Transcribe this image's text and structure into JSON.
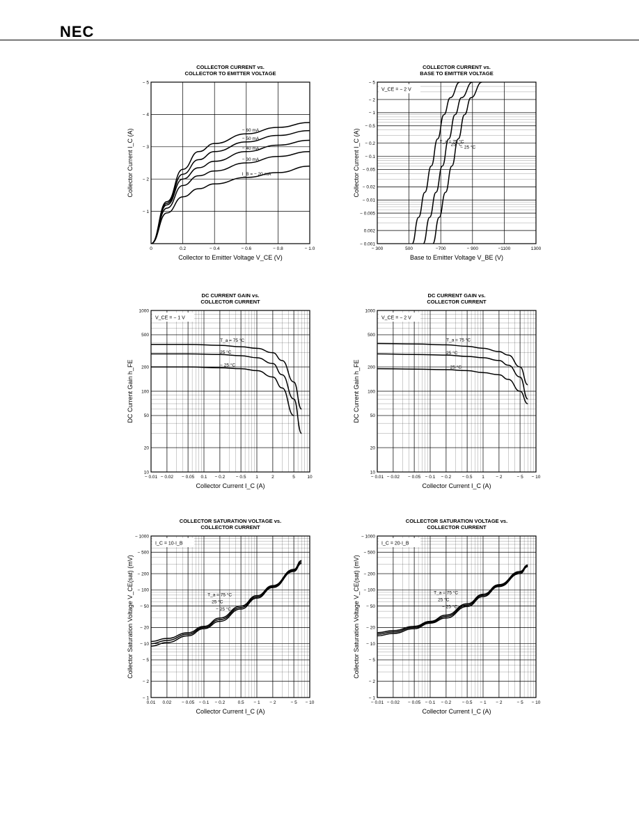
{
  "header": {
    "brand": "NEC"
  },
  "chart_data": [
    {
      "id": "c1",
      "type": "line",
      "title": "COLLECTOR CURRENT vs.\nCOLLECTOR TO EMITTER VOLTAGE",
      "xlabel": "Collector to Emitter Voltage  V_CE (V)",
      "ylabel": "Collector Current  I_C (A)",
      "xscale": "linear",
      "yscale": "linear",
      "xlim": [
        0,
        -1.0
      ],
      "ylim": [
        0,
        -5
      ],
      "xticks": [
        {
          "v": 0,
          "l": "0"
        },
        {
          "v": -0.2,
          "l": "0.2"
        },
        {
          "v": -0.4,
          "l": "− 0.4"
        },
        {
          "v": -0.6,
          "l": "− 0.6"
        },
        {
          "v": -0.8,
          "l": "− 0.8"
        },
        {
          "v": -1.0,
          "l": "− 1.0"
        }
      ],
      "yticks": [
        {
          "v": 0,
          "l": ""
        },
        {
          "v": -1,
          "l": "− 1"
        },
        {
          "v": -2,
          "l": "− 2"
        },
        {
          "v": -3,
          "l": "− 3"
        },
        {
          "v": -4,
          "l": "− 4"
        },
        {
          "v": -5,
          "l": "− 5"
        }
      ],
      "series": [
        {
          "name": "− 60 mA",
          "x": [
            0,
            -0.1,
            -0.2,
            -0.3,
            -0.4,
            -0.6,
            -0.8,
            -1.0
          ],
          "y": [
            0,
            -1.3,
            -2.3,
            -2.85,
            -3.1,
            -3.4,
            -3.6,
            -3.75
          ]
        },
        {
          "name": "− 50 mA",
          "x": [
            0,
            -0.1,
            -0.2,
            -0.3,
            -0.4,
            -0.6,
            -0.8,
            -1.0
          ],
          "y": [
            0,
            -1.25,
            -2.15,
            -2.6,
            -2.85,
            -3.15,
            -3.35,
            -3.5
          ]
        },
        {
          "name": "− 40 mA",
          "x": [
            0,
            -0.1,
            -0.2,
            -0.3,
            -0.4,
            -0.6,
            -0.8,
            -1.0
          ],
          "y": [
            0,
            -1.2,
            -2.0,
            -2.35,
            -2.55,
            -2.85,
            -3.05,
            -3.2
          ]
        },
        {
          "name": "− 30 mA",
          "x": [
            0,
            -0.1,
            -0.2,
            -0.3,
            -0.4,
            -0.6,
            -0.8,
            -1.0
          ],
          "y": [
            0,
            -1.1,
            -1.8,
            -2.1,
            -2.25,
            -2.5,
            -2.7,
            -2.85
          ]
        },
        {
          "name": "I_B = − 20 mA",
          "x": [
            0,
            -0.1,
            -0.2,
            -0.3,
            -0.4,
            -0.6,
            -0.8,
            -1.0
          ],
          "y": [
            0,
            -0.95,
            -1.45,
            -1.7,
            -1.85,
            -2.05,
            -2.2,
            -2.4
          ]
        }
      ]
    },
    {
      "id": "c2",
      "type": "line",
      "title": "COLLECTOR CURRENT vs.\nBASE TO EMITTER VOLTAGE",
      "xlabel": "Base to Emitter Voltage  V_BE (V)",
      "ylabel": "Collector Current  I_C (A)",
      "xscale": "linear",
      "yscale": "log",
      "xlim": [
        -300,
        -1300
      ],
      "ylim": [
        -0.001,
        -5
      ],
      "annotation": "V_CE = − 2 V",
      "xticks": [
        {
          "v": -300,
          "l": "− 300"
        },
        {
          "v": -500,
          "l": "500"
        },
        {
          "v": -700,
          "l": "−700"
        },
        {
          "v": -900,
          "l": "− 900"
        },
        {
          "v": -1100,
          "l": "−1100"
        },
        {
          "v": -1300,
          "l": "1300"
        }
      ],
      "yticks": [
        {
          "v": -5,
          "l": "− 5"
        },
        {
          "v": -2,
          "l": "− 2"
        },
        {
          "v": -1,
          "l": "− 1"
        },
        {
          "v": -0.5,
          "l": "− 0.5"
        },
        {
          "v": -0.2,
          "l": "− 0.2"
        },
        {
          "v": -0.1,
          "l": "− 0.1"
        },
        {
          "v": -0.05,
          "l": "− 0.05"
        },
        {
          "v": -0.02,
          "l": "− 0.02"
        },
        {
          "v": -0.01,
          "l": "− 0.01"
        },
        {
          "v": -0.005,
          "l": "− 0.005"
        },
        {
          "v": -0.002,
          "l": "0.002"
        },
        {
          "v": -0.001,
          "l": "− 0.001"
        }
      ],
      "series": [
        {
          "name": "T_a = 75 °C",
          "x": [
            -520,
            -560,
            -600,
            -640,
            -680,
            -720,
            -760,
            -820
          ],
          "y": [
            -0.001,
            -0.004,
            -0.015,
            -0.06,
            -0.25,
            -0.9,
            -2.2,
            -5
          ]
        },
        {
          "name": "25 °C",
          "x": [
            -590,
            -630,
            -670,
            -710,
            -750,
            -790,
            -830,
            -900
          ],
          "y": [
            -0.001,
            -0.004,
            -0.015,
            -0.06,
            -0.25,
            -0.9,
            -2.2,
            -5
          ]
        },
        {
          "name": "− 25 °C",
          "x": [
            -650,
            -690,
            -730,
            -770,
            -810,
            -850,
            -890,
            -960
          ],
          "y": [
            -0.001,
            -0.004,
            -0.015,
            -0.06,
            -0.25,
            -0.9,
            -2.2,
            -5
          ]
        }
      ]
    },
    {
      "id": "c3",
      "type": "line",
      "title": "DC CURRENT GAIN vs.\nCOLLECTOR CURRENT",
      "xlabel": "Collector Current  I_C (A)",
      "ylabel": "DC Current Gain  h_FE",
      "xscale": "log",
      "yscale": "log",
      "xlim": [
        -0.01,
        -10
      ],
      "ylim": [
        10,
        1000
      ],
      "annotation": "V_CE = − 1 V",
      "xticks": [
        {
          "v": -0.01,
          "l": "− 0.01"
        },
        {
          "v": -0.02,
          "l": "− 0.02"
        },
        {
          "v": -0.05,
          "l": "− 0.05"
        },
        {
          "v": -0.1,
          "l": "0.1"
        },
        {
          "v": -0.2,
          "l": "− 0.2"
        },
        {
          "v": -0.5,
          "l": "− 0.5"
        },
        {
          "v": -1,
          "l": "1"
        },
        {
          "v": -2,
          "l": "2"
        },
        {
          "v": -5,
          "l": "5"
        },
        {
          "v": -10,
          "l": "10"
        }
      ],
      "yticks": [
        {
          "v": 1000,
          "l": "1000"
        },
        {
          "v": 500,
          "l": "500"
        },
        {
          "v": 200,
          "l": "200"
        },
        {
          "v": 100,
          "l": "100"
        },
        {
          "v": 50,
          "l": "50"
        },
        {
          "v": 20,
          "l": "20"
        },
        {
          "v": 10,
          "l": "10"
        }
      ],
      "series": [
        {
          "name": "T_a = 75 °C",
          "x": [
            -0.01,
            -0.05,
            -0.2,
            -0.5,
            -1,
            -2,
            -3,
            -5,
            -7
          ],
          "y": [
            380,
            380,
            370,
            355,
            340,
            300,
            240,
            130,
            60
          ]
        },
        {
          "name": "25 °C",
          "x": [
            -0.01,
            -0.05,
            -0.2,
            -0.5,
            -1,
            -2,
            -3,
            -5,
            -7
          ],
          "y": [
            290,
            290,
            285,
            275,
            260,
            220,
            160,
            80,
            30
          ]
        },
        {
          "name": "− 25 °C",
          "x": [
            -0.01,
            -0.05,
            -0.2,
            -0.5,
            -1,
            -2,
            -3,
            -5
          ],
          "y": [
            200,
            200,
            195,
            190,
            180,
            150,
            110,
            50
          ]
        }
      ]
    },
    {
      "id": "c4",
      "type": "line",
      "title": "DC CURRENT GAIN vs.\nCOLLECTOR CURRENT",
      "xlabel": "Collector Current  I_C (A)",
      "ylabel": "DC Current Gain  h_FE",
      "xscale": "log",
      "yscale": "log",
      "xlim": [
        -0.01,
        -10
      ],
      "ylim": [
        10,
        1000
      ],
      "annotation": "V_CE = − 2 V",
      "xticks": [
        {
          "v": -0.01,
          "l": "− 0.01"
        },
        {
          "v": -0.02,
          "l": "− 0.02"
        },
        {
          "v": -0.05,
          "l": "− 0.05"
        },
        {
          "v": -0.1,
          "l": "− 0.1"
        },
        {
          "v": -0.2,
          "l": "− 0.2"
        },
        {
          "v": -0.5,
          "l": "− 0.5"
        },
        {
          "v": -1,
          "l": "1"
        },
        {
          "v": -2,
          "l": "− 2"
        },
        {
          "v": -5,
          "l": "− 5"
        },
        {
          "v": -10,
          "l": "− 10"
        }
      ],
      "yticks": [
        {
          "v": 1000,
          "l": "1000"
        },
        {
          "v": 500,
          "l": "500"
        },
        {
          "v": 200,
          "l": "200"
        },
        {
          "v": 100,
          "l": "100"
        },
        {
          "v": 50,
          "l": "50"
        },
        {
          "v": 20,
          "l": "20"
        },
        {
          "v": 10,
          "l": "10"
        }
      ],
      "series": [
        {
          "name": "T_a = 75 °C",
          "x": [
            -0.01,
            -0.05,
            -0.2,
            -0.5,
            -1,
            -2,
            -3,
            -5,
            -7
          ],
          "y": [
            390,
            385,
            375,
            360,
            340,
            310,
            280,
            200,
            120
          ]
        },
        {
          "name": "25 °C",
          "x": [
            -0.01,
            -0.05,
            -0.2,
            -0.5,
            -1,
            -2,
            -3,
            -5,
            -7
          ],
          "y": [
            290,
            285,
            280,
            270,
            260,
            240,
            210,
            150,
            80
          ]
        },
        {
          "name": "− 25 °C",
          "x": [
            -0.01,
            -0.05,
            -0.2,
            -0.5,
            -1,
            -2,
            -3,
            -5,
            -7
          ],
          "y": [
            190,
            188,
            185,
            180,
            170,
            160,
            140,
            100,
            70
          ]
        }
      ]
    },
    {
      "id": "c5",
      "type": "line",
      "title": "COLLECTOR SATURATION VOLTAGE vs.\nCOLLECTOR CURRENT",
      "xlabel": "Collector Current  I_C (A)",
      "ylabel": "Collector Saturation Voltage  V_CE(sat) (mV)",
      "xscale": "log",
      "yscale": "log",
      "xlim": [
        -0.01,
        -10
      ],
      "ylim": [
        -1,
        -1000
      ],
      "annotation": "I_C = 10·I_B",
      "xticks": [
        {
          "v": -0.01,
          "l": "0.01"
        },
        {
          "v": -0.02,
          "l": "0.02"
        },
        {
          "v": -0.05,
          "l": "− 0.05"
        },
        {
          "v": -0.1,
          "l": "− 0.1"
        },
        {
          "v": -0.2,
          "l": "− 0.2"
        },
        {
          "v": -0.5,
          "l": "0.5"
        },
        {
          "v": -1,
          "l": "− 1"
        },
        {
          "v": -2,
          "l": "− 2"
        },
        {
          "v": -5,
          "l": "− 5"
        },
        {
          "v": -10,
          "l": "− 10"
        }
      ],
      "yticks": [
        {
          "v": -1000,
          "l": "− 1000"
        },
        {
          "v": -500,
          "l": "− 500"
        },
        {
          "v": -200,
          "l": "− 200"
        },
        {
          "v": -100,
          "l": "− 100"
        },
        {
          "v": -50,
          "l": "− 50"
        },
        {
          "v": -20,
          "l": "− 20"
        },
        {
          "v": -10,
          "l": "− 10"
        },
        {
          "v": -5,
          "l": "− 5"
        },
        {
          "v": -2,
          "l": "− 2"
        },
        {
          "v": -1,
          "l": "− 1"
        }
      ],
      "series": [
        {
          "name": "T_a = 75 °C",
          "x": [
            -0.01,
            -0.02,
            -0.05,
            -0.1,
            -0.2,
            -0.5,
            -1,
            -2,
            -5,
            -7
          ],
          "y": [
            -11,
            -12.5,
            -16,
            -21,
            -30,
            -50,
            -78,
            -120,
            -240,
            -350
          ]
        },
        {
          "name": "25 °C",
          "x": [
            -0.01,
            -0.02,
            -0.05,
            -0.1,
            -0.2,
            -0.5,
            -1,
            -2,
            -5,
            -7
          ],
          "y": [
            -10,
            -11.5,
            -15,
            -20,
            -28,
            -47,
            -74,
            -115,
            -230,
            -330
          ]
        },
        {
          "name": "− 25 °C",
          "x": [
            -0.01,
            -0.02,
            -0.05,
            -0.1,
            -0.2,
            -0.5,
            -1,
            -2,
            -5,
            -7
          ],
          "y": [
            -9,
            -10.5,
            -14,
            -19,
            -26,
            -44,
            -70,
            -110,
            -220,
            -310
          ]
        }
      ]
    },
    {
      "id": "c6",
      "type": "line",
      "title": "COLLECTOR SATURATION VOLTAGE vs.\nCOLLECTOR CURRENT",
      "xlabel": "Collector Current  I_C (A)",
      "ylabel": "Collector Saturation Voltage  V_CE(sat) (mV)",
      "xscale": "log",
      "yscale": "log",
      "xlim": [
        -0.01,
        -10
      ],
      "ylim": [
        -1,
        -1000
      ],
      "annotation": "I_C = 20·I_B",
      "xticks": [
        {
          "v": -0.01,
          "l": "− 0.01"
        },
        {
          "v": -0.02,
          "l": "− 0.02"
        },
        {
          "v": -0.05,
          "l": "− 0.05"
        },
        {
          "v": -0.1,
          "l": "− 0.1"
        },
        {
          "v": -0.2,
          "l": "− 0.2"
        },
        {
          "v": -0.5,
          "l": "− 0.5"
        },
        {
          "v": -1,
          "l": "− 1"
        },
        {
          "v": -2,
          "l": "− 2"
        },
        {
          "v": -5,
          "l": "− 5"
        },
        {
          "v": -10,
          "l": "− 10"
        }
      ],
      "yticks": [
        {
          "v": -1000,
          "l": "− 1000"
        },
        {
          "v": -500,
          "l": "− 500"
        },
        {
          "v": -200,
          "l": "− 200"
        },
        {
          "v": -100,
          "l": "− 100"
        },
        {
          "v": -50,
          "l": "− 50"
        },
        {
          "v": -20,
          "l": "− 20"
        },
        {
          "v": -10,
          "l": "− 10"
        },
        {
          "v": -5,
          "l": "− 5"
        },
        {
          "v": -2,
          "l": "− 2"
        },
        {
          "v": -1,
          "l": "− 1"
        }
      ],
      "series": [
        {
          "name": "T_a = 75 °C",
          "x": [
            -0.01,
            -0.02,
            -0.05,
            -0.1,
            -0.2,
            -0.5,
            -1,
            -2,
            -5,
            -7
          ],
          "y": [
            -16,
            -17.5,
            -21,
            -26,
            -34,
            -55,
            -83,
            -125,
            -220,
            -290
          ]
        },
        {
          "name": "25 °C",
          "x": [
            -0.01,
            -0.02,
            -0.05,
            -0.1,
            -0.2,
            -0.5,
            -1,
            -2,
            -5,
            -7
          ],
          "y": [
            -15,
            -16.5,
            -20,
            -25,
            -32,
            -52,
            -79,
            -120,
            -210,
            -280
          ]
        },
        {
          "name": "− 25 °C",
          "x": [
            -0.01,
            -0.02,
            -0.05,
            -0.1,
            -0.2,
            -0.5,
            -1,
            -2,
            -5,
            -7
          ],
          "y": [
            -14,
            -15.5,
            -19,
            -24,
            -30,
            -49,
            -75,
            -115,
            -200,
            -270
          ]
        }
      ]
    }
  ]
}
